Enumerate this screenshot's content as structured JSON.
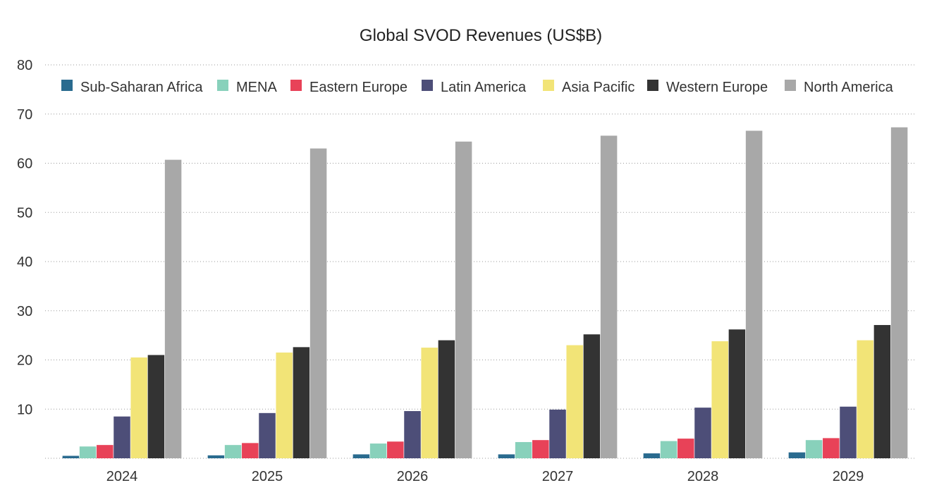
{
  "chart_data": {
    "type": "bar",
    "title": "Global SVOD Revenues (US$B)",
    "xlabel": "",
    "ylabel": "",
    "categories": [
      "2024",
      "2025",
      "2026",
      "2027",
      "2028",
      "2029"
    ],
    "ylim": [
      0,
      80
    ],
    "yticks": [
      "10",
      "20",
      "30",
      "40",
      "50",
      "60",
      "70",
      "80"
    ],
    "grid": "horizontal dotted",
    "legend_position": "top",
    "series": [
      {
        "name": "Sub-Saharan Africa",
        "color": "#2a6b8f",
        "values": [
          0.5,
          0.6,
          0.8,
          0.8,
          1.0,
          1.2
        ]
      },
      {
        "name": "MENA",
        "color": "#88d1bb",
        "values": [
          2.4,
          2.7,
          3.0,
          3.3,
          3.5,
          3.7
        ]
      },
      {
        "name": "Eastern Europe",
        "color": "#e84258",
        "values": [
          2.7,
          3.1,
          3.4,
          3.7,
          4.0,
          4.1
        ]
      },
      {
        "name": "Latin America",
        "color": "#4d4e78",
        "values": [
          8.5,
          9.2,
          9.6,
          9.9,
          10.3,
          10.5
        ]
      },
      {
        "name": "Asia Pacific",
        "color": "#f2e477",
        "values": [
          20.5,
          21.5,
          22.5,
          23.0,
          23.8,
          24.0
        ]
      },
      {
        "name": "Western Europe",
        "color": "#333333",
        "values": [
          21.0,
          22.6,
          24.0,
          25.2,
          26.2,
          27.1
        ]
      },
      {
        "name": "North America",
        "color": "#a8a8a8",
        "values": [
          60.7,
          63.0,
          64.4,
          65.6,
          66.6,
          67.3
        ]
      }
    ]
  }
}
